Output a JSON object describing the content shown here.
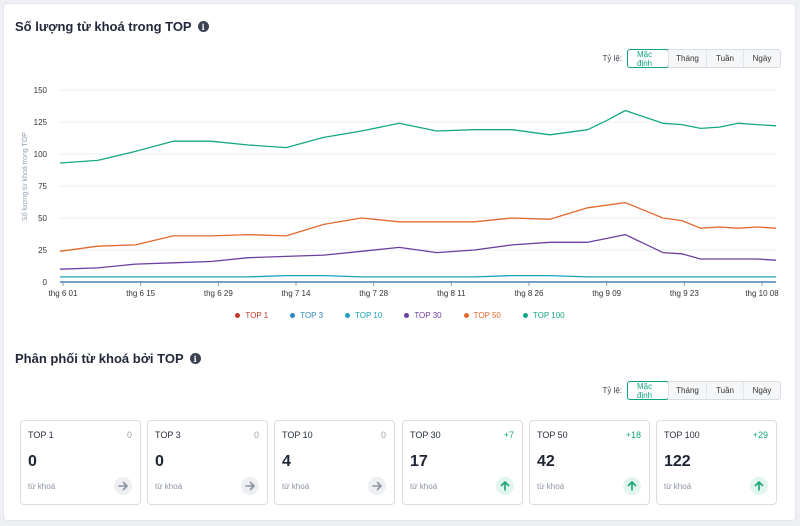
{
  "section1": {
    "title": "Số lượng từ khoá trong TOP",
    "info_icon": "i",
    "scale_label": "Tỷ lệ:",
    "scale_options": [
      "Mặc định",
      "Tháng",
      "Tuần",
      "Ngày"
    ],
    "scale_selected": "Mặc định",
    "ylabel": "Số lượng từ khoá trong TOP"
  },
  "chart_data": {
    "type": "line",
    "ylabel": "Số lượng từ khoá trong TOP",
    "ylim": [
      0,
      150
    ],
    "yticks": [
      0,
      25,
      50,
      75,
      100,
      125,
      150
    ],
    "x_tick_labels": [
      "thg 6 01",
      "thg 6 15",
      "thg 6 29",
      "thg 7 14",
      "thg 7 28",
      "thg 8 11",
      "thg 8 26",
      "thg 9 09",
      "thg 9 23",
      "thg 10 08"
    ],
    "grid": "horizontal",
    "legend_position": "bottom",
    "x": [
      0,
      2,
      4,
      6,
      8,
      10,
      12,
      14,
      16,
      18,
      20,
      22,
      24,
      26,
      28,
      29,
      30,
      31,
      32,
      33,
      34,
      35,
      36,
      37,
      38
    ],
    "series": [
      {
        "name": "TOP 1",
        "color": "#c0392b",
        "values": [
          0,
          0,
          0,
          0,
          0,
          0,
          0,
          0,
          0,
          0,
          0,
          0,
          0,
          0,
          0,
          0,
          0,
          0,
          0,
          0,
          0,
          0,
          0,
          0,
          0
        ]
      },
      {
        "name": "TOP 3",
        "color": "#2e86c1",
        "values": [
          0,
          0,
          0,
          0,
          0,
          0,
          0,
          0,
          0,
          0,
          0,
          0,
          0,
          0,
          0,
          0,
          0,
          0,
          0,
          0,
          0,
          0,
          0,
          0,
          0
        ]
      },
      {
        "name": "TOP 10",
        "color": "#17a2b8",
        "values": [
          4,
          4,
          4,
          4,
          4,
          4,
          5,
          5,
          4,
          4,
          4,
          4,
          5,
          5,
          4,
          4,
          4,
          4,
          4,
          4,
          4,
          4,
          4,
          4,
          4
        ]
      },
      {
        "name": "TOP 30",
        "color": "#6c3fa0",
        "values": [
          10,
          11,
          14,
          15,
          16,
          19,
          20,
          21,
          24,
          27,
          23,
          25,
          29,
          31,
          31,
          34,
          37,
          30,
          23,
          22,
          18,
          18,
          18,
          18,
          17
        ]
      },
      {
        "name": "TOP 50",
        "color": "#e4682e",
        "values": [
          24,
          28,
          29,
          36,
          36,
          37,
          36,
          45,
          50,
          47,
          47,
          47,
          50,
          49,
          58,
          60,
          62,
          56,
          50,
          48,
          42,
          43,
          42,
          43,
          42
        ]
      },
      {
        "name": "TOP 100",
        "color": "#16a883",
        "values": [
          93,
          95,
          102,
          110,
          110,
          107,
          105,
          113,
          118,
          124,
          118,
          119,
          119,
          115,
          119,
          126,
          134,
          129,
          124,
          123,
          120,
          121,
          124,
          123,
          122
        ]
      }
    ]
  },
  "section2": {
    "title": "Phân phối từ khoá bởi TOP",
    "info_icon": "i",
    "scale_label": "Tỷ lệ:",
    "scale_options": [
      "Mặc định",
      "Tháng",
      "Tuần",
      "Ngày"
    ],
    "scale_selected": "Mặc định"
  },
  "cards": [
    {
      "name": "TOP 1",
      "delta": "0",
      "value": "0",
      "unit": "từ khoá",
      "trend": "flat"
    },
    {
      "name": "TOP 3",
      "delta": "0",
      "value": "0",
      "unit": "từ khoá",
      "trend": "flat"
    },
    {
      "name": "TOP 10",
      "delta": "0",
      "value": "4",
      "unit": "từ khoá",
      "trend": "flat"
    },
    {
      "name": "TOP 30",
      "delta": "+7",
      "value": "17",
      "unit": "từ khoá",
      "trend": "up"
    },
    {
      "name": "TOP 50",
      "delta": "+18",
      "value": "42",
      "unit": "từ khoá",
      "trend": "up"
    },
    {
      "name": "TOP 100",
      "delta": "+29",
      "value": "122",
      "unit": "từ khoá",
      "trend": "up"
    }
  ],
  "colors": {
    "accent": "#10a37f",
    "up": "#14a67a",
    "flat": "#9aa2ae"
  }
}
